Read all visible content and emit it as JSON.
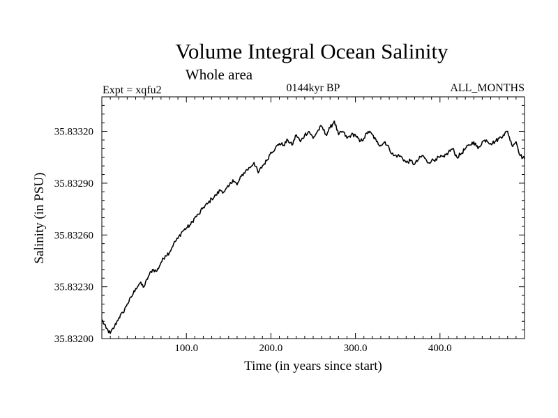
{
  "chart_data": {
    "type": "line",
    "title": "Volume Integral Ocean Salinity",
    "subtitle": "Whole area",
    "experiment_label": "Expt = xqfu2",
    "period_label": "0144kyr BP",
    "months_label": "ALL_MONTHS",
    "xlabel": "Time (in years since start)",
    "ylabel": "Salinity (in PSU)",
    "xlim": [
      0,
      500
    ],
    "ylim": [
      35.832,
      35.8334
    ],
    "x_ticks": [
      100,
      200,
      300,
      400
    ],
    "x_tick_labels": [
      "100.0",
      "200.0",
      "300.0",
      "400.0"
    ],
    "y_ticks": [
      35.832,
      35.8323,
      35.8326,
      35.8329,
      35.8332
    ],
    "y_tick_labels": [
      "35.83200",
      "35.83230",
      "35.83260",
      "35.83290",
      "35.83320"
    ],
    "grid": false,
    "series": [
      {
        "name": "salinity",
        "color": "#000000",
        "x": [
          0,
          5,
          10,
          15,
          20,
          25,
          30,
          35,
          40,
          45,
          50,
          55,
          60,
          65,
          70,
          75,
          80,
          85,
          90,
          95,
          100,
          105,
          110,
          115,
          120,
          125,
          130,
          135,
          140,
          145,
          150,
          155,
          160,
          165,
          170,
          175,
          180,
          185,
          190,
          195,
          200,
          205,
          210,
          215,
          220,
          225,
          230,
          235,
          240,
          245,
          250,
          255,
          260,
          265,
          270,
          275,
          280,
          285,
          290,
          295,
          300,
          305,
          310,
          315,
          320,
          325,
          330,
          335,
          340,
          345,
          350,
          355,
          360,
          365,
          370,
          375,
          380,
          385,
          390,
          395,
          400,
          405,
          410,
          415,
          420,
          425,
          430,
          435,
          440,
          445,
          450,
          455,
          460,
          465,
          470,
          475,
          480,
          485,
          490,
          495,
          500
        ],
        "values": [
          35.83211,
          35.83206,
          35.83203,
          35.83207,
          35.83212,
          35.83215,
          35.8322,
          35.83224,
          35.83229,
          35.83232,
          35.8323,
          35.83236,
          35.8324,
          35.83239,
          35.83244,
          35.83248,
          35.8325,
          35.83255,
          35.83258,
          35.83262,
          35.83264,
          35.83266,
          35.8327,
          35.83272,
          35.83276,
          35.83278,
          35.83281,
          35.83283,
          35.83286,
          35.83285,
          35.83288,
          35.83292,
          35.83289,
          35.83294,
          35.83297,
          35.83299,
          35.83302,
          35.83296,
          35.833,
          35.83303,
          35.83308,
          35.8331,
          35.83313,
          35.83312,
          35.83315,
          35.83312,
          35.83318,
          35.83314,
          35.83318,
          35.8332,
          35.83316,
          35.8332,
          35.83323,
          35.83318,
          35.83322,
          35.83326,
          35.83318,
          35.8332,
          35.83316,
          35.83318,
          35.83318,
          35.83314,
          35.83316,
          35.8332,
          35.83318,
          35.83314,
          35.83312,
          35.83314,
          35.8331,
          35.83306,
          35.83306,
          35.83305,
          35.83302,
          35.83303,
          35.83301,
          35.83304,
          35.83306,
          35.83302,
          35.83303,
          35.83304,
          35.83305,
          35.83305,
          35.83308,
          35.8331,
          35.83305,
          35.83307,
          35.8331,
          35.83312,
          35.83314,
          35.8331,
          35.83314,
          35.83315,
          35.83313,
          35.83314,
          35.83316,
          35.83318,
          35.8332,
          35.83312,
          35.83314,
          35.83306,
          35.83304
        ]
      }
    ]
  }
}
